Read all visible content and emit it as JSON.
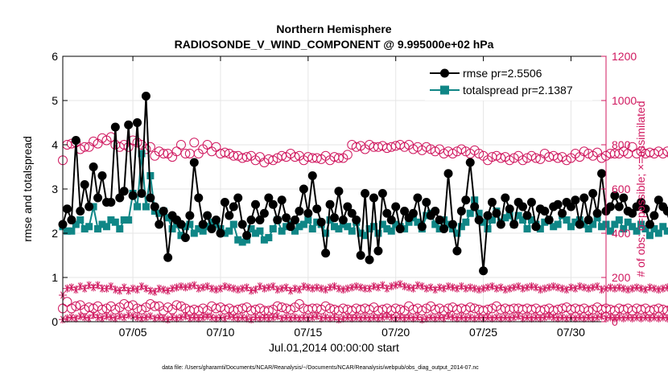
{
  "colors": {
    "rmse": "#000000",
    "totalspread": "#0f8686",
    "right_axis": "#d0185f",
    "axes": "#000000",
    "grid": "#e6e6e6"
  },
  "chart_data": {
    "type": "line",
    "title": "Northern Hemisphere",
    "subtitle": "RADIOSONDE_V_WIND_COMPONENT @ 9.995000e+02 hPa",
    "xlabel": "Jul.01,2014 00:00:00 start",
    "ylabel": "rmse and totalspread",
    "ylabel_right": "# of obs: o=possible; ×=assimilated",
    "xlim": [
      1,
      32
    ],
    "ylim": [
      0,
      6
    ],
    "ylim_right": [
      0,
      1200
    ],
    "x_ticks": [
      5,
      10,
      15,
      20,
      25,
      30
    ],
    "x_tick_labels": [
      "07/05",
      "07/10",
      "07/15",
      "07/20",
      "07/25",
      "07/30"
    ],
    "y_ticks": [
      0,
      1,
      2,
      3,
      4,
      5,
      6
    ],
    "y_tick_labels": [
      "0",
      "1",
      "2",
      "3",
      "4",
      "5",
      "6"
    ],
    "y_right_ticks": [
      0,
      200,
      400,
      600,
      800,
      1000,
      1200
    ],
    "y_right_tick_labels": [
      "0",
      "200",
      "400",
      "600",
      "800",
      "1000",
      "1200"
    ],
    "grid": true,
    "legend_position": "top-right",
    "legend": [
      "rmse pr=2.5506",
      "totalspread pr=2.1387"
    ],
    "footer": "data file: /Users/gharamti/Documents/NCAR/Reanalysis/~/Documents/NCAR/Reanalysis/webpub/obs_diag_output_2014-07.nc",
    "x_start": 1.0,
    "x_step": 0.25,
    "series": [
      {
        "name": "rmse",
        "axis": "left",
        "marker": "filled-circle",
        "values": [
          2.2,
          2.55,
          2.3,
          4.1,
          2.5,
          3.1,
          2.6,
          3.5,
          2.8,
          3.3,
          2.7,
          2.7,
          4.4,
          2.8,
          2.95,
          4.45,
          2.85,
          4.5,
          2.9,
          5.1,
          2.8,
          2.6,
          2.2,
          2.5,
          1.45,
          2.4,
          2.3,
          2.2,
          1.9,
          2.4,
          3.6,
          2.8,
          2.2,
          2.4,
          2.1,
          2.3,
          2.0,
          2.7,
          2.4,
          2.6,
          2.8,
          2.2,
          1.95,
          2.3,
          2.65,
          2.3,
          2.45,
          2.8,
          2.65,
          2.3,
          2.75,
          2.35,
          2.15,
          2.3,
          2.5,
          3.0,
          2.45,
          3.3,
          2.55,
          2.25,
          1.55,
          2.65,
          2.35,
          2.95,
          2.3,
          2.6,
          2.45,
          2.3,
          1.5,
          2.9,
          1.4,
          2.8,
          1.6,
          2.9,
          2.45,
          2.3,
          2.6,
          2.1,
          2.5,
          2.35,
          2.45,
          2.8,
          2.15,
          2.7,
          2.4,
          2.5,
          2.3,
          2.1,
          3.35,
          2.2,
          1.6,
          2.5,
          2.75,
          3.6,
          2.6,
          2.3,
          1.15,
          2.4,
          2.7,
          2.45,
          2.2,
          2.8,
          2.55,
          2.2,
          2.7,
          2.6,
          2.4,
          2.7,
          2.15,
          2.55,
          2.5,
          2.3,
          2.6,
          2.65,
          2.45,
          2.7,
          2.6,
          2.75,
          2.2,
          2.8,
          2.3,
          2.9,
          2.45,
          3.35,
          2.5,
          2.6,
          2.85,
          2.6,
          2.8,
          2.5,
          2.45,
          2.6,
          2.7,
          2.55,
          2.2,
          2.4,
          2.75,
          2.6,
          2.5,
          2.4,
          2.2,
          2.55,
          2.7,
          2.45,
          2.3,
          2.1,
          2.6,
          2.5,
          2.7,
          2.35,
          2.6,
          2.2,
          1.6,
          2.7,
          2.5,
          2.4,
          2.75,
          2.5,
          2.9,
          2.75,
          2.6,
          2.55,
          2.8
        ]
      },
      {
        "name": "totalspread",
        "axis": "left",
        "marker": "filled-square",
        "values": [
          2.15,
          2.05,
          2.05,
          2.2,
          2.3,
          2.1,
          2.15,
          2.6,
          2.1,
          2.2,
          2.15,
          2.3,
          2.25,
          2.1,
          2.3,
          2.3,
          2.9,
          2.6,
          3.8,
          2.6,
          3.3,
          2.5,
          2.45,
          2.5,
          2.35,
          2.1,
          2.2,
          1.95,
          2.15,
          2.2,
          2.0,
          2.1,
          2.05,
          2.15,
          2.25,
          2.2,
          2.1,
          2.0,
          2.05,
          2.2,
          1.85,
          1.8,
          1.85,
          2.1,
          2.0,
          2.05,
          1.85,
          1.9,
          2.1,
          2.3,
          2.05,
          2.15,
          2.2,
          2.05,
          2.15,
          2.2,
          2.3,
          2.1,
          2.25,
          2.2,
          2.0,
          2.3,
          2.15,
          2.1,
          2.2,
          2.15,
          2.05,
          2.25,
          2.0,
          1.95,
          2.1,
          2.15,
          2.0,
          2.2,
          2.1,
          2.05,
          2.2,
          2.15,
          2.1,
          2.25,
          2.35,
          2.25,
          2.1,
          2.4,
          2.45,
          2.2,
          2.1,
          2.3,
          2.2,
          2.1,
          2.0,
          2.15,
          2.25,
          2.45,
          2.75,
          2.45,
          2.25,
          2.1,
          2.3,
          2.5,
          2.25,
          2.35,
          2.4,
          2.2,
          2.4,
          2.3,
          2.1,
          2.3,
          2.2,
          2.1,
          2.25,
          2.3,
          2.15,
          2.2,
          2.4,
          2.3,
          2.15,
          2.25,
          2.3,
          2.2,
          2.1,
          2.2,
          2.35,
          2.15,
          2.2,
          2.05,
          2.2,
          2.3,
          2.1,
          2.25,
          2.15,
          2.05,
          2.2,
          2.1,
          1.95,
          2.1,
          2.0,
          2.15,
          2.05,
          1.95,
          2.1,
          2.0,
          2.2,
          2.05,
          2.1,
          2.15,
          2.0,
          2.2,
          2.1,
          2.25,
          2.05,
          2.2,
          2.15,
          2.1,
          2.2,
          2.05,
          2.25,
          2.15,
          2.1,
          2.2,
          2.2
        ]
      },
      {
        "name": "possible (large cluster)",
        "axis": "right",
        "marker": "open-circle",
        "values": [
          730,
          800,
          805,
          810,
          780,
          790,
          790,
          815,
          805,
          830,
          820,
          835,
          800,
          790,
          800,
          790,
          820,
          810,
          800,
          780,
          790,
          750,
          770,
          760,
          760,
          745,
          770,
          800,
          760,
          760,
          810,
          760,
          780,
          800,
          770,
          790,
          760,
          765,
          760,
          750,
          750,
          740,
          745,
          750,
          730,
          745,
          720,
          735,
          730,
          740,
          750,
          745,
          760,
          745,
          750,
          730,
          745,
          740,
          740,
          735,
          750,
          730,
          745,
          740,
          740,
          755,
          800,
          790,
          795,
          780,
          800,
          790,
          790,
          795,
          785,
          790,
          795,
          800,
          790,
          800,
          780,
          790,
          775,
          790,
          780,
          770,
          780,
          760,
          770,
          760,
          770,
          780,
          770,
          760,
          775,
          760,
          750,
          730,
          745,
          750,
          740,
          745,
          730,
          740,
          750,
          730,
          740,
          750,
          740,
          735,
          760,
          745,
          750,
          740,
          745,
          730,
          740,
          760,
          745,
          770,
          760,
          750,
          765,
          740,
          750,
          760,
          760,
          760,
          770,
          760,
          790,
          760,
          770,
          760,
          765,
          760,
          770,
          760,
          770,
          755,
          760,
          755,
          760,
          740,
          745,
          760,
          750,
          745,
          760,
          740,
          750,
          760,
          730,
          735,
          760,
          765,
          780,
          790,
          800,
          760,
          740
        ]
      },
      {
        "name": "possible (small cluster)",
        "axis": "right",
        "marker": "open-circle",
        "values": [
          60,
          90,
          60,
          70,
          75,
          55,
          65,
          60,
          70,
          55,
          60,
          70,
          55,
          65,
          80,
          70,
          75,
          60,
          55,
          65,
          80,
          70,
          70,
          50,
          65,
          55,
          75,
          70,
          60,
          50,
          55,
          50,
          60,
          50,
          70,
          60,
          65,
          55,
          60,
          50,
          55,
          60,
          65,
          50,
          55,
          60,
          50,
          50,
          55,
          70,
          65,
          60,
          55,
          65,
          80,
          60,
          55,
          60,
          60,
          55,
          70,
          60,
          55,
          50,
          60,
          55,
          50,
          60,
          55,
          60,
          55,
          65,
          50,
          55,
          60,
          50,
          60,
          55,
          50,
          70,
          55,
          60,
          50,
          60,
          70,
          55,
          60,
          50,
          60,
          65,
          55,
          60,
          55,
          65,
          60,
          55,
          50,
          55,
          60,
          70,
          55,
          60,
          55,
          60,
          60,
          55,
          60,
          55,
          60,
          50,
          55,
          60,
          50,
          55,
          60,
          65,
          55,
          60,
          55,
          60,
          50,
          55,
          65,
          55,
          60,
          55,
          50,
          60,
          55,
          60,
          50,
          60,
          55,
          60,
          50,
          55,
          60,
          55,
          50,
          60,
          60,
          55,
          60,
          50,
          55,
          60,
          55,
          60,
          65,
          55,
          50,
          60,
          55,
          60,
          50,
          55,
          60,
          55,
          60,
          45,
          10
        ]
      },
      {
        "name": "assimilated (large cluster)",
        "axis": "right",
        "marker": "asterisk",
        "values": [
          120,
          150,
          155,
          145,
          160,
          150,
          165,
          155,
          165,
          150,
          150,
          160,
          145,
          140,
          155,
          140,
          150,
          145,
          160,
          150,
          140,
          135,
          150,
          145,
          140,
          150,
          155,
          160,
          155,
          160,
          165,
          150,
          155,
          160,
          150,
          145,
          150,
          160,
          155,
          150,
          145,
          150,
          155,
          140,
          145,
          160,
          150,
          155,
          160,
          145,
          150,
          155,
          140,
          150,
          145,
          160,
          155,
          150,
          155,
          150,
          145,
          155,
          160,
          150,
          145,
          150,
          155,
          160,
          155,
          150,
          150,
          160,
          155,
          165,
          150,
          160,
          165,
          170,
          160,
          155,
          150,
          165,
          160,
          150,
          155,
          145,
          155,
          150,
          160,
          155,
          150,
          160,
          150,
          155,
          150,
          145,
          150,
          155,
          160,
          150,
          155,
          145,
          150,
          155,
          160,
          150,
          155,
          160,
          155,
          145,
          150,
          155,
          160,
          155,
          150,
          145,
          155,
          150,
          160,
          155,
          150,
          155,
          160,
          145,
          150,
          155,
          150,
          155,
          150,
          145,
          150,
          155,
          150,
          145,
          155,
          150,
          145,
          150,
          155,
          140,
          150,
          145,
          155,
          150,
          145,
          150,
          140,
          145,
          150,
          160,
          145,
          150,
          140,
          150,
          155,
          140,
          150,
          145,
          140,
          150,
          145
        ]
      },
      {
        "name": "assimilated (small cluster)",
        "axis": "right",
        "marker": "asterisk",
        "values": [
          10,
          15,
          20,
          15,
          25,
          20,
          15,
          30,
          20,
          15,
          25,
          20,
          15,
          25,
          20,
          30,
          25,
          20,
          15,
          20,
          25,
          15,
          20,
          15,
          10,
          20,
          15,
          20,
          25,
          15,
          20,
          15,
          20,
          25,
          20,
          15,
          20,
          15,
          25,
          20,
          15,
          20,
          15,
          10,
          20,
          15,
          20,
          15,
          20,
          25,
          15,
          20,
          15,
          20,
          15,
          20,
          15,
          20,
          25,
          15,
          20,
          15,
          20,
          10,
          15,
          20,
          15,
          20,
          15,
          20,
          15,
          20,
          15,
          20,
          25,
          20,
          15,
          20,
          15,
          20,
          15,
          20,
          10,
          15,
          20,
          15,
          20,
          15,
          25,
          20,
          15,
          20,
          15,
          20,
          15,
          20,
          15,
          20,
          15,
          20,
          15,
          20,
          15,
          20,
          25,
          15,
          20,
          15,
          20,
          15,
          20,
          25,
          20,
          15,
          20,
          15,
          20,
          15,
          20,
          15,
          20,
          15,
          20,
          25,
          15,
          20,
          15,
          20,
          15,
          20,
          15,
          20,
          15,
          20,
          15,
          20,
          15,
          20,
          15,
          10,
          15,
          20,
          15,
          20,
          15,
          20,
          15,
          10,
          15,
          20,
          15,
          20,
          15,
          20,
          15,
          20,
          15,
          20,
          15,
          10,
          5
        ]
      }
    ]
  }
}
